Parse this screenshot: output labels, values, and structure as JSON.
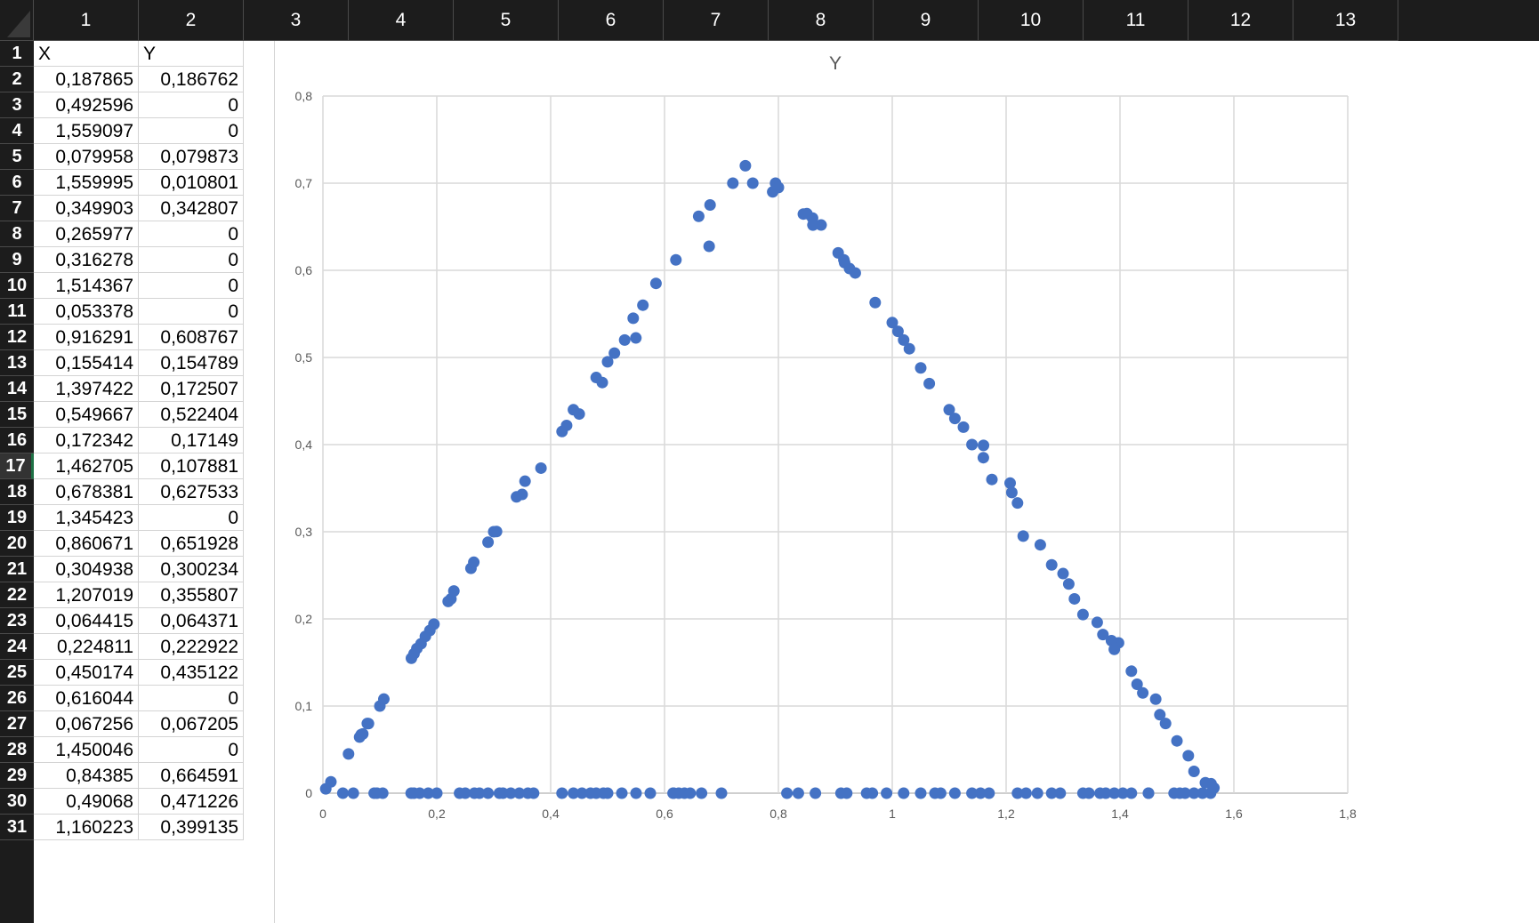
{
  "columns": [
    "1",
    "2",
    "3",
    "4",
    "5",
    "6",
    "7",
    "8",
    "9",
    "10",
    "11",
    "12",
    "13"
  ],
  "rows": [
    "1",
    "2",
    "3",
    "4",
    "5",
    "6",
    "7",
    "8",
    "9",
    "10",
    "11",
    "12",
    "13",
    "14",
    "15",
    "16",
    "17",
    "18",
    "19",
    "20",
    "21",
    "22",
    "23",
    "24",
    "25",
    "26",
    "27",
    "28",
    "29",
    "30",
    "31"
  ],
  "active_row": "17",
  "headers": {
    "x": "X",
    "y": "Y"
  },
  "cells": [
    [
      "0,187865",
      "0,186762"
    ],
    [
      "0,492596",
      "0"
    ],
    [
      "1,559097",
      "0"
    ],
    [
      "0,079958",
      "0,079873"
    ],
    [
      "1,559995",
      "0,010801"
    ],
    [
      "0,349903",
      "0,342807"
    ],
    [
      "0,265977",
      "0"
    ],
    [
      "0,316278",
      "0"
    ],
    [
      "1,514367",
      "0"
    ],
    [
      "0,053378",
      "0"
    ],
    [
      "0,916291",
      "0,608767"
    ],
    [
      "0,155414",
      "0,154789"
    ],
    [
      "1,397422",
      "0,172507"
    ],
    [
      "0,549667",
      "0,522404"
    ],
    [
      "0,172342",
      "0,17149"
    ],
    [
      "1,462705",
      "0,107881"
    ],
    [
      "0,678381",
      "0,627533"
    ],
    [
      "1,345423",
      "0"
    ],
    [
      "0,860671",
      "0,651928"
    ],
    [
      "0,304938",
      "0,300234"
    ],
    [
      "1,207019",
      "0,355807"
    ],
    [
      "0,064415",
      "0,064371"
    ],
    [
      "0,224811",
      "0,222922"
    ],
    [
      "0,450174",
      "0,435122"
    ],
    [
      "0,616044",
      "0"
    ],
    [
      "0,067256",
      "0,067205"
    ],
    [
      "1,450046",
      "0"
    ],
    [
      "0,84385",
      "0,664591"
    ],
    [
      "0,49068",
      "0,471226"
    ],
    [
      "1,160223",
      "0,399135"
    ]
  ],
  "chart_data": {
    "type": "scatter",
    "title": "Y",
    "xlabel": "",
    "ylabel": "",
    "xlim": [
      0,
      1.8
    ],
    "ylim": [
      0,
      0.8
    ],
    "x_ticks": [
      "0",
      "0,2",
      "0,4",
      "0,6",
      "0,8",
      "1",
      "1,2",
      "1,4",
      "1,6",
      "1,8"
    ],
    "y_ticks": [
      "0",
      "0,1",
      "0,2",
      "0,3",
      "0,4",
      "0,5",
      "0,6",
      "0,7",
      "0,8"
    ],
    "grid": true,
    "marker_color": "#4472c4",
    "series": [
      {
        "x": [
          0.187865,
          0.079958,
          0.349903,
          0.155414,
          0.549667,
          0.172342,
          0.678381,
          0.304938,
          0.064415,
          0.224811,
          0.450174,
          0.067256,
          0.49068,
          0.916291,
          1.397422,
          1.462705,
          0.860671,
          1.207019,
          0.84385,
          1.160223,
          1.559995,
          0.005,
          0.014,
          0.045,
          0.07,
          0.078,
          0.1,
          0.107,
          0.16,
          0.165,
          0.18,
          0.195,
          0.22,
          0.23,
          0.26,
          0.265,
          0.29,
          0.3,
          0.34,
          0.355,
          0.383,
          0.42,
          0.428,
          0.44,
          0.48,
          0.5,
          0.512,
          0.53,
          0.545,
          0.562,
          0.585,
          0.62,
          0.66,
          0.68,
          0.72,
          0.742,
          0.755,
          0.79,
          0.795,
          0.8,
          0.85,
          0.86,
          0.875,
          0.905,
          0.915,
          0.925,
          0.935,
          0.97,
          1.0,
          1.01,
          1.02,
          1.03,
          1.05,
          1.065,
          1.1,
          1.11,
          1.125,
          1.14,
          1.16,
          1.175,
          1.21,
          1.22,
          1.23,
          1.26,
          1.28,
          1.3,
          1.31,
          1.32,
          1.335,
          1.36,
          1.37,
          1.385,
          1.39,
          1.42,
          1.43,
          1.44,
          1.47,
          1.48,
          1.5,
          1.52,
          1.53,
          1.55,
          1.565
        ],
        "y": [
          0.186762,
          0.079873,
          0.342807,
          0.154789,
          0.522404,
          0.17149,
          0.627533,
          0.300234,
          0.064371,
          0.222922,
          0.435122,
          0.067205,
          0.471226,
          0.608767,
          0.172507,
          0.107881,
          0.651928,
          0.355807,
          0.664591,
          0.399135,
          0.010801,
          0.005,
          0.013,
          0.045,
          0.068,
          0.08,
          0.1,
          0.108,
          0.16,
          0.166,
          0.18,
          0.194,
          0.22,
          0.232,
          0.258,
          0.265,
          0.288,
          0.3,
          0.34,
          0.358,
          0.373,
          0.415,
          0.422,
          0.44,
          0.477,
          0.495,
          0.505,
          0.52,
          0.545,
          0.56,
          0.585,
          0.612,
          0.662,
          0.675,
          0.7,
          0.72,
          0.7,
          0.69,
          0.7,
          0.695,
          0.665,
          0.66,
          0.652,
          0.62,
          0.612,
          0.602,
          0.597,
          0.563,
          0.54,
          0.53,
          0.52,
          0.51,
          0.488,
          0.47,
          0.44,
          0.43,
          0.42,
          0.4,
          0.385,
          0.36,
          0.345,
          0.333,
          0.295,
          0.285,
          0.262,
          0.252,
          0.24,
          0.223,
          0.205,
          0.196,
          0.182,
          0.175,
          0.165,
          0.14,
          0.125,
          0.115,
          0.09,
          0.08,
          0.06,
          0.043,
          0.025,
          0.012,
          0.006
        ]
      },
      {
        "x": [
          0.053378,
          0.265977,
          0.316278,
          0.492596,
          0.616044,
          1.345423,
          1.450046,
          1.514367,
          1.559097,
          0.035,
          0.09,
          0.095,
          0.105,
          0.155,
          0.16,
          0.17,
          0.185,
          0.2,
          0.24,
          0.25,
          0.275,
          0.29,
          0.31,
          0.33,
          0.345,
          0.36,
          0.37,
          0.42,
          0.44,
          0.455,
          0.47,
          0.48,
          0.5,
          0.525,
          0.55,
          0.575,
          0.615,
          0.625,
          0.635,
          0.645,
          0.665,
          0.7,
          0.815,
          0.835,
          0.865,
          0.91,
          0.92,
          0.955,
          0.965,
          0.99,
          1.02,
          1.05,
          1.075,
          1.085,
          1.11,
          1.14,
          1.155,
          1.17,
          1.22,
          1.235,
          1.255,
          1.28,
          1.295,
          1.335,
          1.365,
          1.375,
          1.39,
          1.405,
          1.42,
          1.45,
          1.495,
          1.505,
          1.53,
          1.545
        ],
        "y": [
          0,
          0,
          0,
          0,
          0,
          0,
          0,
          0,
          0,
          0,
          0,
          0,
          0,
          0,
          0,
          0,
          0,
          0,
          0,
          0,
          0,
          0,
          0,
          0,
          0,
          0,
          0,
          0,
          0,
          0,
          0,
          0,
          0,
          0,
          0,
          0,
          0,
          0,
          0,
          0,
          0,
          0,
          0,
          0,
          0,
          0,
          0,
          0,
          0,
          0,
          0,
          0,
          0,
          0,
          0,
          0,
          0,
          0,
          0,
          0,
          0,
          0,
          0,
          0,
          0,
          0,
          0,
          0,
          0,
          0,
          0,
          0,
          0,
          0
        ]
      }
    ]
  }
}
